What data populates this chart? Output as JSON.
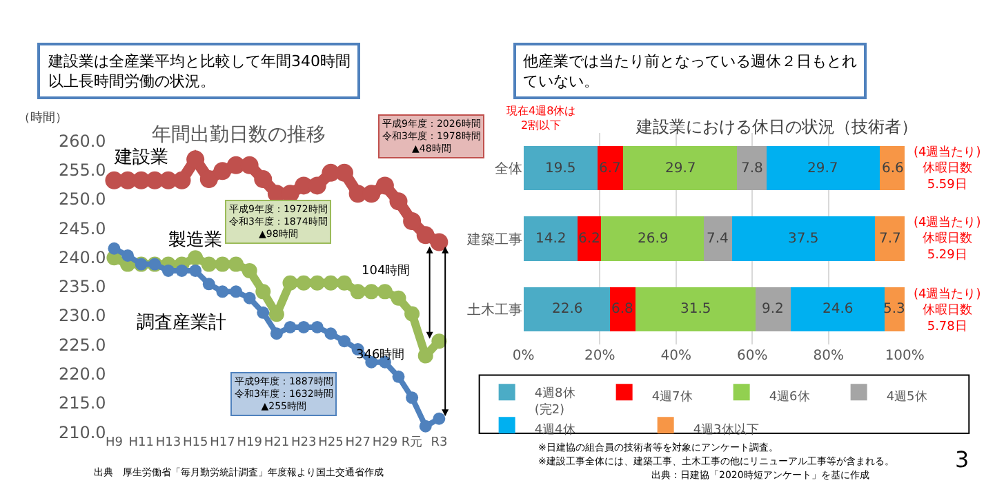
{
  "chart_data": [
    {
      "type": "line",
      "title": "年間出勤日数の推移",
      "subtitle": "建設業は全産業平均と比較して年間340時間以上長時間労働の状況。",
      "ylabel": "（時間）",
      "categories": [
        "H9",
        null,
        "H11",
        null,
        "H13",
        null,
        "H15",
        null,
        "H17",
        null,
        "H19",
        null,
        "H21",
        null,
        "H23",
        null,
        "H25",
        null,
        "H27",
        null,
        "H29",
        null,
        "R元",
        null,
        "R3"
      ],
      "ylim": [
        210,
        260
      ],
      "yticks": [
        {
          "value": 210,
          "label": "210.0"
        },
        {
          "value": 215,
          "label": "215.0"
        },
        {
          "value": 220,
          "label": "220.0"
        },
        {
          "value": 225,
          "label": "225.0"
        },
        {
          "value": 230,
          "label": "230.0"
        },
        {
          "value": 235,
          "label": "235.0"
        },
        {
          "value": 240,
          "label": "240.0"
        },
        {
          "value": 245,
          "label": "245.0"
        },
        {
          "value": 250,
          "label": "250.0"
        },
        {
          "value": 255,
          "label": "255.0"
        },
        {
          "value": 260,
          "label": "260.0"
        }
      ],
      "marker": "circle",
      "line_style": "solid",
      "grid": false,
      "series": [
        {
          "name": "建設業",
          "color": "#c0504d",
          "values": [
            253.2,
            253.2,
            253.2,
            253.2,
            253.2,
            253.2,
            256.8,
            253.4,
            254.8,
            255.8,
            255.8,
            253.4,
            250.9,
            250.9,
            252.3,
            252.3,
            254.5,
            254.5,
            250.9,
            250.9,
            252.3,
            249.6,
            246.2,
            243.8,
            242.6
          ]
        },
        {
          "name": "製造業",
          "color": "#9bbb59",
          "values": [
            239.9,
            238.8,
            238.8,
            238.8,
            238.8,
            238.8,
            239.9,
            238.8,
            238.8,
            238.8,
            237.7,
            234.1,
            230.2,
            235.6,
            235.6,
            235.6,
            235.6,
            235.6,
            234.1,
            234.1,
            234.1,
            233.0,
            230.3,
            223.1,
            225.6
          ]
        },
        {
          "name": "調査産業計",
          "color": "#4f81bd",
          "values": [
            241.5,
            240.3,
            238.8,
            238.8,
            237.7,
            237.7,
            237.7,
            235.4,
            234.1,
            234.1,
            233.0,
            230.5,
            226.9,
            228.0,
            228.0,
            228.0,
            226.9,
            225.6,
            224.2,
            222.0,
            222.0,
            219.5,
            215.9,
            211.0,
            212.3
          ]
        }
      ],
      "annotations": [
        "平成9年度：2026時間令和3年度：1978時間▲48時間",
        "平成9年度：1972時間令和3年度：1874時間▲98時間",
        "平成9年度：1887時間令和3年度：1632時間▲255時間",
        "104時間",
        "346時間",
        "出典　厚生労働省「毎月勤労統計調査」年度報より国土交通省作成"
      ]
    },
    {
      "type": "bar",
      "orientation": "horizontal",
      "stacked": true,
      "title": "建設業における休日の状況（技術者）",
      "subtitle": "他産業では当たり前となっている週休２日もとれていない。",
      "categories": [
        "全体",
        "建築工事",
        "土木工事"
      ],
      "xlim": [
        0,
        100
      ],
      "xticks": [
        {
          "value": 0,
          "label": "0%"
        },
        {
          "value": 20,
          "label": "20%"
        },
        {
          "value": 40,
          "label": "40%"
        },
        {
          "value": 60,
          "label": "60%"
        },
        {
          "value": 80,
          "label": "80%"
        },
        {
          "value": 100,
          "label": "100%"
        }
      ],
      "grid": "x",
      "legend": "bottom",
      "data_labels": true,
      "series": [
        {
          "name": "4週8休\n(完2)",
          "color": "#4bacc6",
          "values": [
            19.5,
            14.2,
            22.6
          ]
        },
        {
          "name": "4週7休",
          "color": "#ff0000",
          "values": [
            6.7,
            6.2,
            6.8
          ]
        },
        {
          "name": "4週6休",
          "color": "#92d050",
          "values": [
            29.7,
            26.9,
            31.5
          ]
        },
        {
          "name": "4週5休",
          "color": "#a5a5a5",
          "values": [
            7.8,
            7.4,
            9.2
          ]
        },
        {
          "name": "4週4休",
          "color": "#00b0f0",
          "values": [
            29.7,
            37.5,
            24.6
          ]
        },
        {
          "name": "4週3休以下",
          "color": "#f79646",
          "values": [
            6.6,
            7.7,
            5.3
          ]
        }
      ],
      "annotations": [
        "現在4週8休は\n2割以下",
        "(4週当たり)\n休暇日数\n5.59日",
        "(4週当たり)\n休暇日数\n5.29日",
        "(4週当たり)\n休暇日数\n5.78日",
        "※日建協の組合員の技術者等を対象にアンケート調査。",
        "※建設工事全体には、建築工事、土木工事の他にリニューアル工事等が含まれる。",
        "出典：日建協「2020時短アンケート」を基に作成",
        "3"
      ]
    }
  ]
}
